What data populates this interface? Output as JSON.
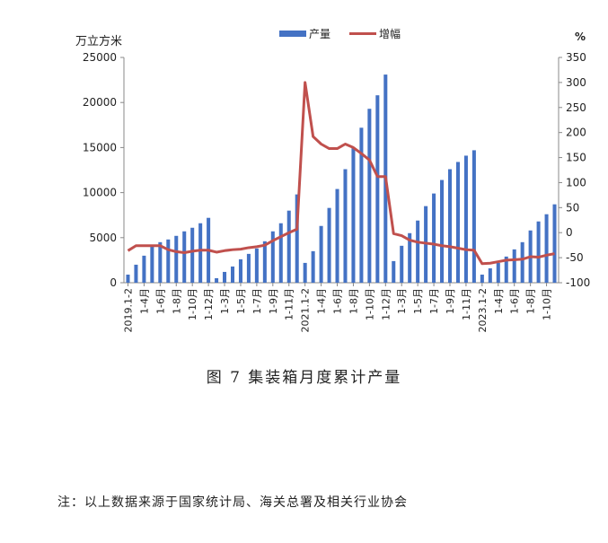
{
  "caption": "图 7 集装箱月度累计产量",
  "note": "注：以上数据来源于国家统计局、海关总署及相关行业协会",
  "colors": {
    "bar": "#4472C4",
    "line": "#C0504D"
  },
  "chart_data": {
    "type": "bar+line",
    "legend": [
      "产量",
      "增幅"
    ],
    "legend_position": "top-center",
    "y_left_unit": "万立方米",
    "y_right_unit": "%",
    "y_left_ticks": [
      "0",
      "5000",
      "10000",
      "15000",
      "20000",
      "25000"
    ],
    "y_right_ticks": [
      "-100",
      "-50",
      "0",
      "50",
      "100",
      "150",
      "200",
      "250",
      "300",
      "350"
    ],
    "ylim_left": [
      0,
      25000
    ],
    "ylim_right": [
      -100,
      350
    ],
    "x_tick_labels": [
      {
        "i": 0,
        "label": "2019.1-2"
      },
      {
        "i": 2,
        "label": "1-4月"
      },
      {
        "i": 4,
        "label": "1-6月"
      },
      {
        "i": 6,
        "label": "1-8月"
      },
      {
        "i": 8,
        "label": "1-10月"
      },
      {
        "i": 10,
        "label": "1-12月"
      },
      {
        "i": 12,
        "label": "1-3月"
      },
      {
        "i": 14,
        "label": "1-5月"
      },
      {
        "i": 16,
        "label": "1-7月"
      },
      {
        "i": 18,
        "label": "1-9月"
      },
      {
        "i": 20,
        "label": "1-11月"
      },
      {
        "i": 22,
        "label": "2021.1-2"
      },
      {
        "i": 24,
        "label": "1-4月"
      },
      {
        "i": 26,
        "label": "1-6月"
      },
      {
        "i": 28,
        "label": "1-8月"
      },
      {
        "i": 30,
        "label": "1-10月"
      },
      {
        "i": 32,
        "label": "1-12月"
      },
      {
        "i": 34,
        "label": "1-3月"
      },
      {
        "i": 36,
        "label": "1-5月"
      },
      {
        "i": 38,
        "label": "1-7月"
      },
      {
        "i": 40,
        "label": "1-9月"
      },
      {
        "i": 42,
        "label": "1-11月"
      },
      {
        "i": 44,
        "label": "2023.1-2"
      },
      {
        "i": 46,
        "label": "1-4月"
      },
      {
        "i": 48,
        "label": "1-6月"
      },
      {
        "i": 50,
        "label": "1-8月"
      },
      {
        "i": 52,
        "label": "1-10月"
      }
    ],
    "series": [
      {
        "name": "产量",
        "type": "bar",
        "axis": "left",
        "values": [
          900,
          2000,
          3000,
          4000,
          4500,
          4800,
          5200,
          5700,
          6100,
          6600,
          7200,
          500,
          1200,
          1800,
          2600,
          3200,
          3800,
          4600,
          5700,
          6600,
          8000,
          9800,
          2200,
          3500,
          6300,
          8300,
          10400,
          12600,
          15000,
          17200,
          19300,
          20800,
          23100,
          2400,
          4100,
          5500,
          6900,
          8500,
          9900,
          11400,
          12600,
          13400,
          14100,
          14700,
          900,
          1600,
          2200,
          2900,
          3700,
          4500,
          5800,
          6800,
          7600,
          8700
        ]
      },
      {
        "name": "增幅",
        "type": "line",
        "axis": "right",
        "values": [
          -36,
          -26,
          -26,
          -26,
          -26,
          -34,
          -38,
          -40,
          -37,
          -35,
          -35,
          -39,
          -36,
          -34,
          -33,
          -30,
          -28,
          -25,
          -16,
          -8,
          0,
          7,
          300,
          192,
          177,
          168,
          168,
          177,
          170,
          158,
          145,
          112,
          112,
          -2,
          -6,
          -15,
          -19,
          -21,
          -23,
          -26,
          -28,
          -31,
          -34,
          -35,
          -62,
          -61,
          -58,
          -55,
          -54,
          -53,
          -48,
          -49,
          -45,
          -42
        ]
      }
    ]
  }
}
